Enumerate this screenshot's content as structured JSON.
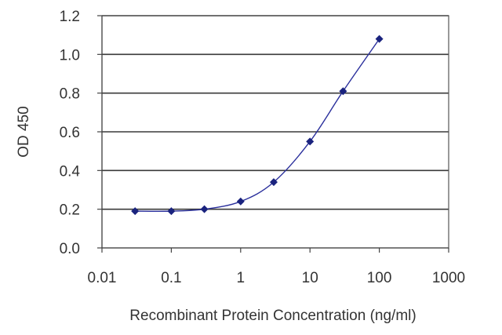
{
  "chart_data": {
    "type": "line",
    "xlabel": "Recombinant Protein Concentration (ng/ml)",
    "ylabel": "OD 450",
    "xscale": "log",
    "xlim": [
      0.01,
      1000
    ],
    "ylim": [
      0.0,
      1.2
    ],
    "x_ticks": [
      0.01,
      0.1,
      1,
      10,
      100,
      1000
    ],
    "x_tick_labels": [
      "0.01",
      "0.1",
      "1",
      "10",
      "100",
      "1000"
    ],
    "y_ticks": [
      0.0,
      0.2,
      0.4,
      0.6,
      0.8,
      1.0,
      1.2
    ],
    "y_tick_labels": [
      "0.0",
      "0.2",
      "0.4",
      "0.6",
      "0.8",
      "1.0",
      "1.2"
    ],
    "grid": "horizontal",
    "legend": "none",
    "series": [
      {
        "x": [
          0.03,
          0.1,
          0.3,
          1,
          3,
          10,
          30,
          100
        ],
        "y": [
          0.19,
          0.19,
          0.2,
          0.24,
          0.34,
          0.55,
          0.81,
          1.08
        ]
      }
    ],
    "colors": {
      "series": "#2a2f9c",
      "marker": "#1a237e",
      "grid": "#3a3a3a"
    }
  }
}
